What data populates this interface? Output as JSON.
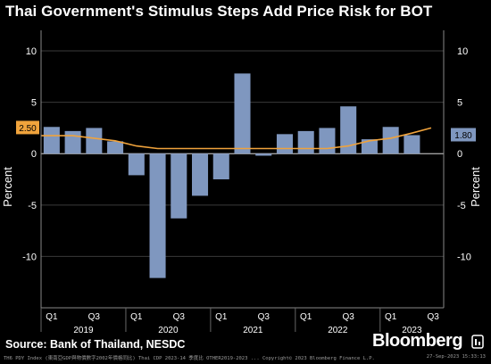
{
  "title": "Thai Government's Stimulus Steps Add Price Risk for BOT",
  "source": "Source: Bank of Thailand, NESDC",
  "brand": "Bloomberg",
  "footer": {
    "left": "TH6 PDY Index (東南亞GDP與物價數字2002年價格同比) Thai CDP 2023-14 季度比 OTHER2019-2023 ... Copyright© 2023 Bloomberg Finance L.P.",
    "right": "27-Sep-2023 15:33:13"
  },
  "colors": {
    "background": "#000000",
    "bar": "#7f97bf",
    "line": "#f0a33c",
    "grid": "#3a3a3a",
    "axis_text": "#ffffff"
  },
  "chart_data": {
    "type": "bar",
    "ylabel_left": "Percent",
    "ylabel_right": "Percent",
    "ylim": [
      -15,
      12
    ],
    "y_ticks": [
      10,
      5,
      0,
      -5,
      -10
    ],
    "grid": true,
    "x_quarter_labels": [
      "Q1",
      "Q3",
      "Q1",
      "Q3",
      "Q1",
      "Q3",
      "Q1",
      "Q3",
      "Q1",
      "Q3"
    ],
    "x_year_labels": [
      "2019",
      "2020",
      "2021",
      "2022",
      "2023"
    ],
    "categories": [
      "2019Q1",
      "2019Q2",
      "2019Q3",
      "2019Q4",
      "2020Q1",
      "2020Q2",
      "2020Q3",
      "2020Q4",
      "2021Q1",
      "2021Q2",
      "2021Q3",
      "2021Q4",
      "2022Q1",
      "2022Q2",
      "2022Q3",
      "2022Q4",
      "2023Q1",
      "2023Q2",
      "2023Q3"
    ],
    "series": [
      {
        "name": "",
        "type": "bar",
        "values": [
          2.6,
          2.2,
          2.5,
          1.2,
          -2.1,
          -12.1,
          -6.3,
          -4.1,
          -2.5,
          7.8,
          -0.2,
          1.9,
          2.2,
          2.5,
          4.6,
          1.4,
          2.6,
          1.8,
          null
        ]
      },
      {
        "name": "",
        "type": "line",
        "values": [
          1.75,
          1.75,
          1.5,
          1.25,
          0.75,
          0.5,
          0.5,
          0.5,
          0.5,
          0.5,
          0.5,
          0.5,
          0.5,
          0.5,
          0.75,
          1.25,
          1.5,
          2.0,
          2.5
        ]
      }
    ],
    "callouts": [
      {
        "text": "2.50",
        "side": "left",
        "color": "#f0a33c"
      },
      {
        "text": "1.80",
        "side": "right",
        "color": "#7f97bf"
      }
    ]
  }
}
